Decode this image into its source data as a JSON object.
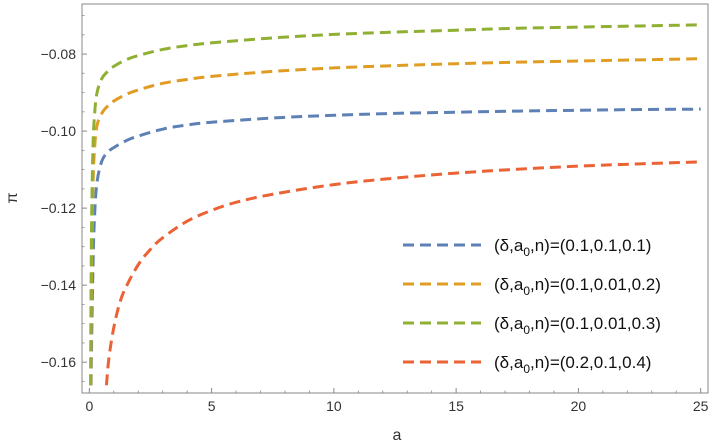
{
  "chart_data": {
    "type": "line",
    "xlabel": "a",
    "ylabel": "π",
    "xlim": [
      -0.3,
      25.3
    ],
    "ylim": [
      -0.168,
      -0.067
    ],
    "xticks": [
      0,
      5,
      10,
      15,
      20,
      25
    ],
    "yticks": [
      -0.16,
      -0.14,
      -0.12,
      -0.1,
      -0.08
    ],
    "xtick_labels": [
      "0",
      "5",
      "10",
      "15",
      "20",
      "25"
    ],
    "ytick_labels": [
      "−0.16",
      "−0.14",
      "−0.12",
      "−0.10",
      "−0.08"
    ],
    "grid": false,
    "legend_position": "bottom-right",
    "series": [
      {
        "name": "(δ,a0,n)=(0.1,0.1,0.1)",
        "color": "#5e81b5",
        "dash": "dashed",
        "x": [
          0.07,
          0.1,
          0.15,
          0.2,
          0.3,
          0.5,
          0.75,
          1,
          1.5,
          2,
          3,
          4,
          5,
          7.5,
          10,
          12.5,
          15,
          17.5,
          20,
          22.5,
          25
        ],
        "y": [
          -0.166,
          -0.152,
          -0.135,
          -0.124,
          -0.114,
          -0.108,
          -0.1055,
          -0.1043,
          -0.1025,
          -0.1013,
          -0.0995,
          -0.0984,
          -0.0977,
          -0.0966,
          -0.0959,
          -0.0954,
          -0.0951,
          -0.0948,
          -0.0946,
          -0.0944,
          -0.0943
        ]
      },
      {
        "name": "(δ,a0,n)=(0.1,0.01,0.2)",
        "color": "#e19c24",
        "dash": "dashed",
        "x": [
          0.06,
          0.08,
          0.1,
          0.15,
          0.2,
          0.3,
          0.5,
          0.75,
          1,
          1.5,
          2,
          3,
          4,
          5,
          7.5,
          10,
          12.5,
          15,
          17.5,
          20,
          22.5,
          25
        ],
        "y": [
          -0.166,
          -0.145,
          -0.131,
          -0.114,
          -0.106,
          -0.099,
          -0.0955,
          -0.0935,
          -0.0922,
          -0.0905,
          -0.0893,
          -0.0876,
          -0.0866,
          -0.0858,
          -0.0845,
          -0.0836,
          -0.083,
          -0.0825,
          -0.0821,
          -0.0818,
          -0.0815,
          -0.0812
        ]
      },
      {
        "name": "(δ,a0,n)=(0.1,0.01,0.3)",
        "color": "#8fb032",
        "dash": "dashed",
        "x": [
          0.05,
          0.07,
          0.1,
          0.15,
          0.2,
          0.3,
          0.5,
          0.75,
          1,
          1.5,
          2,
          3,
          4,
          5,
          7.5,
          10,
          12.5,
          15,
          17.5,
          20,
          22.5,
          25
        ],
        "y": [
          -0.166,
          -0.14,
          -0.12,
          -0.104,
          -0.097,
          -0.0905,
          -0.0865,
          -0.0845,
          -0.0832,
          -0.0815,
          -0.0804,
          -0.0788,
          -0.0778,
          -0.0771,
          -0.0758,
          -0.0749,
          -0.0743,
          -0.0738,
          -0.0733,
          -0.073,
          -0.0727,
          -0.0724
        ]
      },
      {
        "name": "(δ,a0,n)=(0.2,0.1,0.4)",
        "color": "#eb6235",
        "dash": "dashed",
        "x": [
          0.7,
          0.8,
          1,
          1.25,
          1.5,
          2,
          2.5,
          3,
          4,
          5,
          6,
          7.5,
          10,
          12.5,
          15,
          17.5,
          20,
          22.5,
          25
        ],
        "y": [
          -0.166,
          -0.159,
          -0.151,
          -0.1445,
          -0.1405,
          -0.1347,
          -0.1307,
          -0.1277,
          -0.1234,
          -0.1206,
          -0.1185,
          -0.1164,
          -0.1139,
          -0.1122,
          -0.1109,
          -0.1099,
          -0.1091,
          -0.1085,
          -0.108
        ]
      }
    ],
    "legend": [
      {
        "pre": "(δ,a",
        "sub": "0",
        "post": ",n)=(0.1,0.1,0.1)"
      },
      {
        "pre": "(δ,a",
        "sub": "0",
        "post": ",n)=(0.1,0.01,0.2)"
      },
      {
        "pre": "(δ,a",
        "sub": "0",
        "post": ",n)=(0.1,0.01,0.3)"
      },
      {
        "pre": "(δ,a",
        "sub": "0",
        "post": ",n)=(0.2,0.1,0.4)"
      }
    ]
  }
}
